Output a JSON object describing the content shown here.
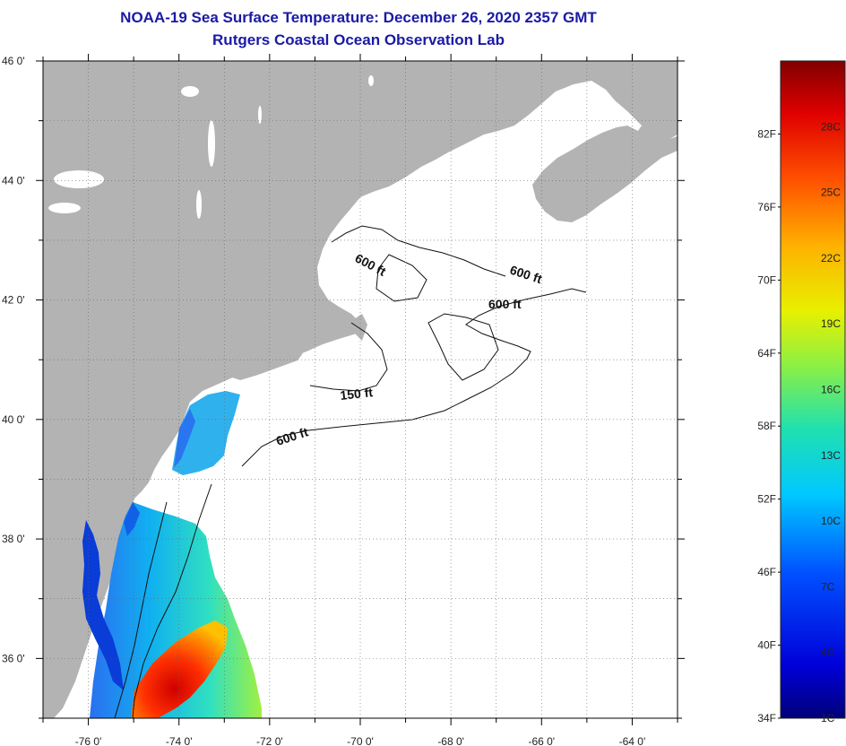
{
  "title": "NOAA-19 Sea Surface Temperature:  December 26, 2020 2357 GMT",
  "subtitle": "Rutgers Coastal Ocean Observation Lab",
  "lat_labels": [
    {
      "value": 46,
      "label": "46 0'"
    },
    {
      "value": 44,
      "label": "44 0'"
    },
    {
      "value": 42,
      "label": "42 0'"
    },
    {
      "value": 40,
      "label": "40 0'"
    },
    {
      "value": 38,
      "label": "38 0'"
    },
    {
      "value": 36,
      "label": "36 0'"
    }
  ],
  "lon_labels": [
    {
      "value": -76,
      "label": "-76 0'"
    },
    {
      "value": -74,
      "label": "-74 0'"
    },
    {
      "value": -72,
      "label": "-72 0'"
    },
    {
      "value": -70,
      "label": "-70 0'"
    },
    {
      "value": -68,
      "label": "-68 0'"
    },
    {
      "value": -66,
      "label": "-66 0'"
    },
    {
      "value": -64,
      "label": "-64 0'"
    }
  ],
  "map_extent": {
    "lon_min": -77,
    "lon_max": -63,
    "lat_min": 35,
    "lat_max": 46
  },
  "contour_labels": [
    "600 ft",
    "600 ft",
    "600 ft",
    "150 ft",
    "600 ft"
  ],
  "colorbar": {
    "fahrenheit": [
      "82F",
      "76F",
      "70F",
      "64F",
      "58F",
      "52F",
      "46F",
      "40F",
      "34F"
    ],
    "celsius": [
      "28C",
      "25C",
      "22C",
      "19C",
      "16C",
      "13C",
      "10C",
      "7C",
      "4C",
      "1C"
    ]
  },
  "colors": {
    "title": "#1a1aa6",
    "land": "#b3b3b3",
    "ocean_nodata": "#ffffff"
  }
}
